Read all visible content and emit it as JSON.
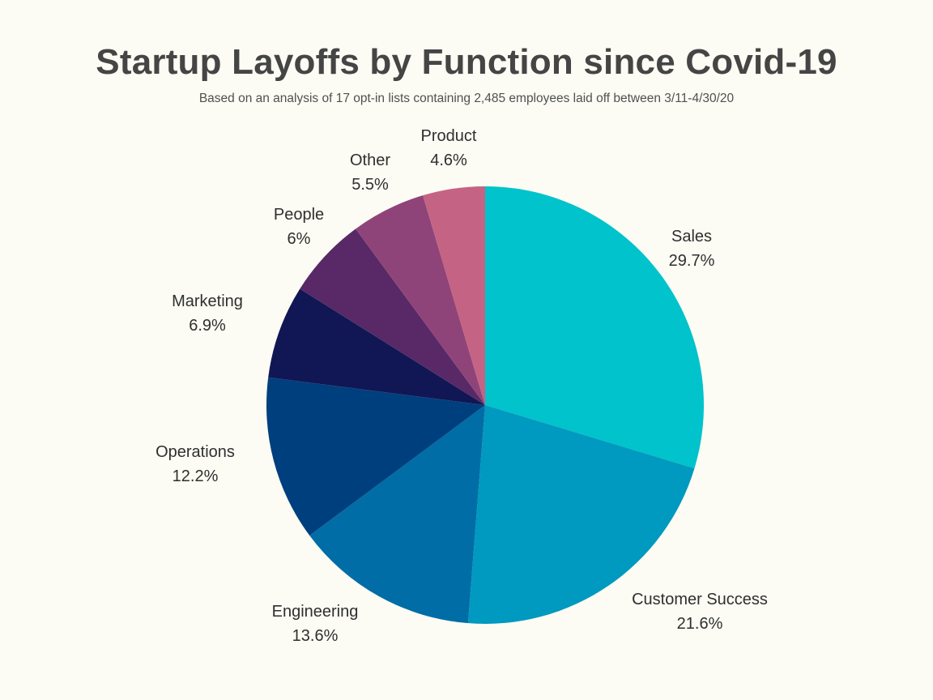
{
  "chart_data": {
    "type": "pie",
    "title": "Startup Layoffs by Function since Covid-19",
    "subtitle": "Based on an analysis of 17 opt-in lists containing 2,485 employees laid off between 3/11-4/30/20",
    "slices": [
      {
        "label": "Sales",
        "value": 29.7,
        "value_label": "29.7%",
        "color": "#00c3cb"
      },
      {
        "label": "Customer Success",
        "value": 21.6,
        "value_label": "21.6%",
        "color": "#0099bf"
      },
      {
        "label": "Engineering",
        "value": 13.6,
        "value_label": "13.6%",
        "color": "#006da6"
      },
      {
        "label": "Operations",
        "value": 12.2,
        "value_label": "12.2%",
        "color": "#003f7e"
      },
      {
        "label": "Marketing",
        "value": 6.9,
        "value_label": "6.9%",
        "color": "#101754"
      },
      {
        "label": "People",
        "value": 6,
        "value_label": "6%",
        "color": "#582966"
      },
      {
        "label": "Other",
        "value": 5.5,
        "value_label": "5.5%",
        "color": "#8f4479"
      },
      {
        "label": "Product",
        "value": 4.6,
        "value_label": "4.6%",
        "color": "#c56384"
      }
    ],
    "start": "12 o'clock",
    "direction": "clockwise",
    "legend": "none",
    "labels": "outside"
  }
}
